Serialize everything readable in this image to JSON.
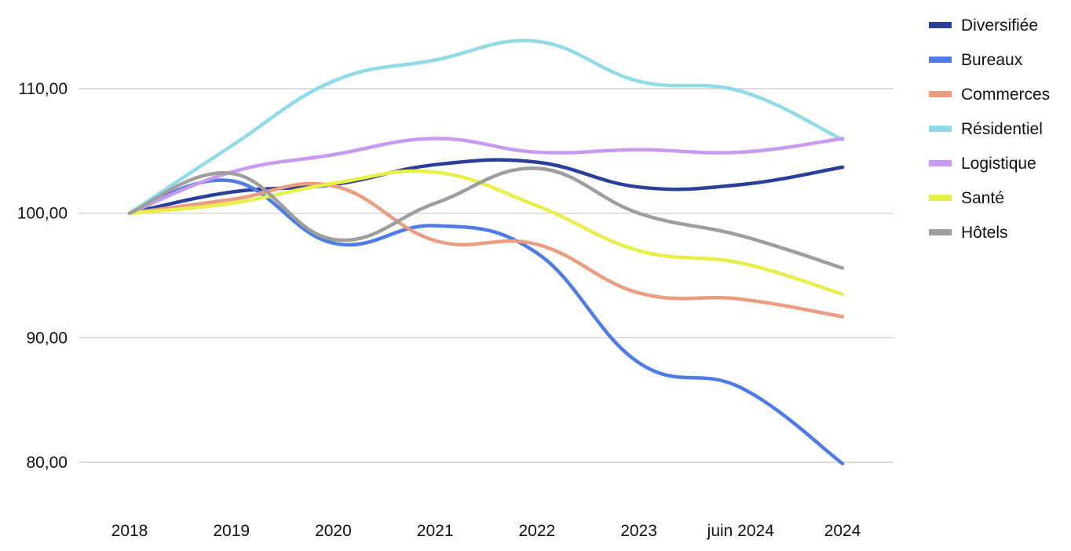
{
  "chart_data": {
    "type": "line",
    "title": "",
    "xlabel": "",
    "ylabel": "",
    "categories": [
      "2018",
      "2019",
      "2020",
      "2021",
      "2022",
      "2023",
      "juin 2024",
      "2024"
    ],
    "ylim": [
      75,
      115
    ],
    "yticks": [
      80,
      90,
      100,
      110
    ],
    "ytick_labels": [
      "80,00",
      "90,00",
      "100,00",
      "110,00"
    ],
    "grid": true,
    "legend_position": "right",
    "series": [
      {
        "name": "Diversifiée",
        "color": "#2a3f99",
        "values": [
          100.0,
          101.7,
          102.3,
          103.9,
          104.1,
          102.1,
          102.3,
          103.7
        ]
      },
      {
        "name": "Bureaux",
        "color": "#4f7be8",
        "values": [
          100.0,
          102.6,
          97.6,
          99.0,
          96.8,
          88.0,
          86.0,
          79.9
        ]
      },
      {
        "name": "Commerces",
        "color": "#eb9d82",
        "values": [
          100.0,
          101.1,
          102.2,
          97.8,
          97.5,
          93.6,
          93.1,
          91.7
        ]
      },
      {
        "name": "Résidentiel",
        "color": "#8fdbe8",
        "values": [
          100.0,
          105.4,
          110.6,
          112.3,
          113.8,
          110.6,
          109.8,
          105.9
        ]
      },
      {
        "name": "Logistique",
        "color": "#c79bf2",
        "values": [
          100.0,
          103.3,
          104.7,
          106.0,
          104.9,
          105.1,
          104.9,
          106.0
        ]
      },
      {
        "name": "Santé",
        "color": "#e6f046",
        "values": [
          100.0,
          100.8,
          102.4,
          103.3,
          100.6,
          97.0,
          96.0,
          93.5
        ]
      },
      {
        "name": "Hôtels",
        "color": "#9e9e9e",
        "values": [
          100.0,
          103.2,
          97.9,
          100.8,
          103.6,
          100.0,
          98.2,
          95.6
        ]
      }
    ]
  }
}
